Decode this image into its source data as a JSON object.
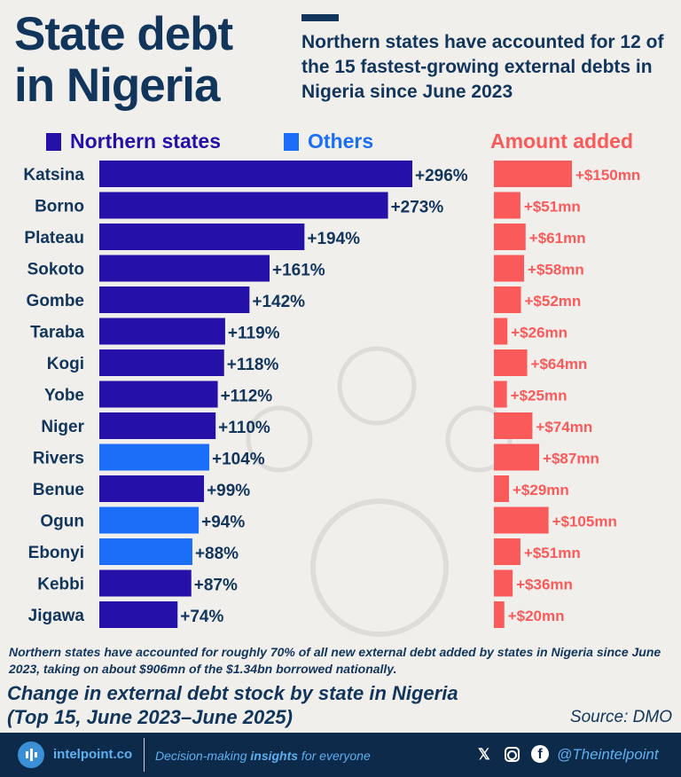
{
  "header": {
    "title_line1": "State debt",
    "title_line2": "in Nigeria",
    "subtitle": "Northern states have accounted for 12 of the 15 fastest-growing external debts in Nigeria since June 2023"
  },
  "legend": {
    "northern": "Northern states",
    "others": "Others",
    "amount": "Amount added"
  },
  "colors": {
    "northern": "#2510a8",
    "others": "#1a6ef7",
    "amount": "#fb5a5a",
    "navy": "#12355b"
  },
  "chart_data": {
    "type": "bar",
    "orientation": "horizontal",
    "categories": [
      "Katsina",
      "Borno",
      "Plateau",
      "Sokoto",
      "Gombe",
      "Taraba",
      "Kogi",
      "Yobe",
      "Niger",
      "Rivers",
      "Benue",
      "Ogun",
      "Ebonyi",
      "Kebbi",
      "Jigawa"
    ],
    "series": [
      {
        "name": "Change in external debt stock (%)",
        "values": [
          296,
          273,
          194,
          161,
          142,
          119,
          118,
          112,
          110,
          104,
          99,
          94,
          88,
          87,
          74
        ],
        "group": [
          "Northern states",
          "Northern states",
          "Northern states",
          "Northern states",
          "Northern states",
          "Northern states",
          "Northern states",
          "Northern states",
          "Northern states",
          "Others",
          "Northern states",
          "Others",
          "Others",
          "Northern states",
          "Northern states"
        ],
        "labels": [
          "+296%",
          "+273%",
          "+194%",
          "+161%",
          "+142%",
          "+119%",
          "+118%",
          "+112%",
          "+110%",
          "+104%",
          "+99%",
          "+94%",
          "+88%",
          "+87%",
          "+74%"
        ]
      },
      {
        "name": "Amount added",
        "values": [
          150,
          51,
          61,
          58,
          52,
          26,
          64,
          25,
          74,
          87,
          29,
          105,
          51,
          36,
          20
        ],
        "labels": [
          "+$150mn",
          "+$51mn",
          "+$61mn",
          "+$58mn",
          "+$52mn",
          "+$26mn",
          "+$64mn",
          "+$25mn",
          "+$74mn",
          "+$87mn",
          "+$29mn",
          "+$105mn",
          "+$51mn",
          "+$36mn",
          "+$20mn"
        ]
      }
    ],
    "title": "Change in external debt stock by state in Nigeria (Top 15, June 2023–June 2025)"
  },
  "note": "Northern states have accounted for roughly 70% of all new external debt added by states in Nigeria since June 2023, taking on about $906mn of the $1.34bn borrowed nationally.",
  "chart_title_line1": "Change in external debt stock by state in Nigeria",
  "chart_title_line2": "(Top 15, June 2023–June 2025)",
  "source": "Source: DMO",
  "footer": {
    "site": "intelpoint.co",
    "tag_pre": "Decision-making ",
    "tag_bold": "insights",
    "tag_post": " for everyone",
    "handle": "@Theintelpoint",
    "icons": [
      "x-icon",
      "instagram-icon",
      "facebook-icon"
    ]
  }
}
